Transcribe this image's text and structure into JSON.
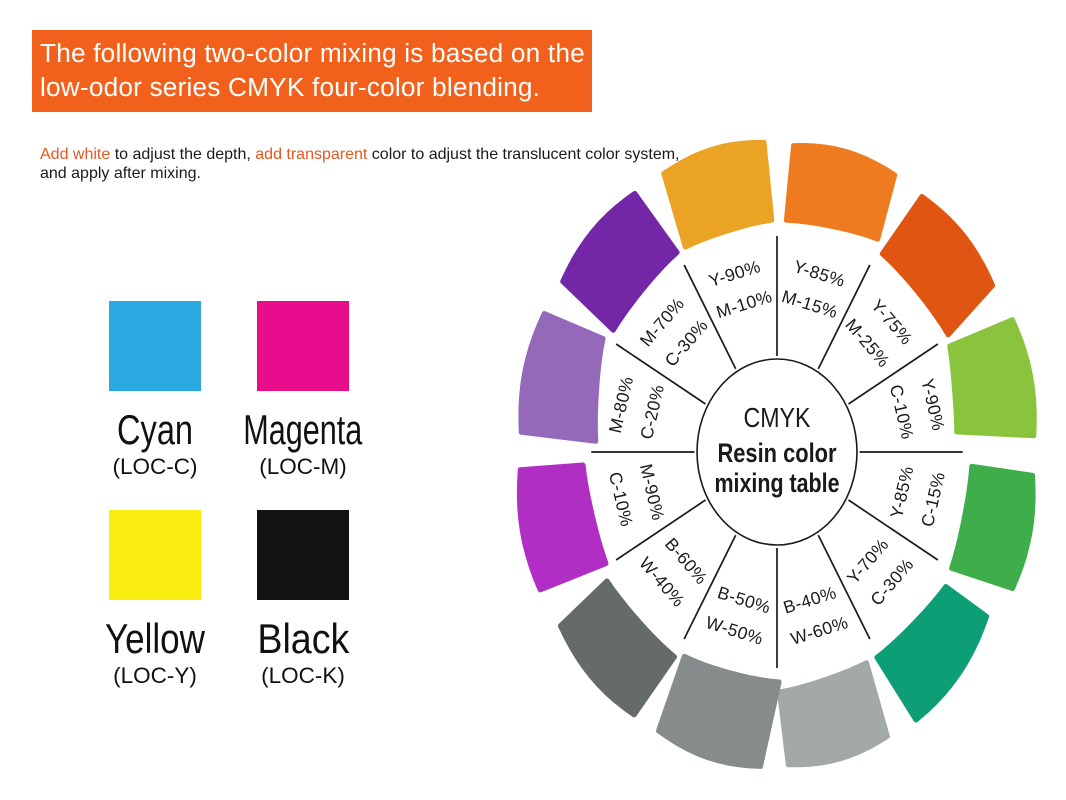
{
  "banner": {
    "line1": "The following two-color mixing is based on the",
    "line2": "low-odor series CMYK four-color blending.",
    "bg_color": "#F2611B",
    "text_color": "#FFFFFF"
  },
  "subtitle": {
    "lines": [
      [
        {
          "text": "Add white",
          "color": "#E8571E"
        },
        {
          "text": " to adjust the depth, ",
          "color": "#1A1A1A"
        },
        {
          "text": "add transparent",
          "color": "#E8571E"
        },
        {
          "text": " color to adjust the translucent color system,",
          "color": "#1A1A1A"
        }
      ],
      [
        {
          "text": "and apply after mixing.",
          "color": "#1A1A1A"
        }
      ]
    ]
  },
  "swatches": [
    {
      "name": "Cyan",
      "code": "(LOC-C)",
      "color": "#29A9E0"
    },
    {
      "name": "Magenta",
      "code": "(LOC-M)",
      "color": "#E70C8C"
    },
    {
      "name": "Yellow",
      "code": "(LOC-Y)",
      "color": "#F9EE0F"
    },
    {
      "name": "Black",
      "code": "(LOC-K)",
      "color": "#131313"
    }
  ],
  "wheel": {
    "center_title": "CMYK",
    "center_line1": "Resin color",
    "center_line2": "mixing table",
    "line_color": "#1A1A1A",
    "sectors": [
      {
        "line1": "Y-85%",
        "line2": "M-15%",
        "color": "#EE7B1F"
      },
      {
        "line1": "Y-75%",
        "line2": "M-25%",
        "color": "#E05512"
      },
      {
        "line1": "Y-90%",
        "line2": "C-10%",
        "color": "#8AC43D"
      },
      {
        "line1": "Y-85%",
        "line2": "C-15%",
        "color": "#3EAD4A"
      },
      {
        "line1": "Y-70%",
        "line2": "C-30%",
        "color": "#0D9E75"
      },
      {
        "line1": "B-40%",
        "line2": "W-60%",
        "color": "#A3A9A8"
      },
      {
        "line1": "B-50%",
        "line2": "W-50%",
        "color": "#868C8B"
      },
      {
        "line1": "B-60%",
        "line2": "W-40%",
        "color": "#656B6A"
      },
      {
        "line1": "M-90%",
        "line2": "C-10%",
        "color": "#B02EC4"
      },
      {
        "line1": "M-80%",
        "line2": "C-20%",
        "color": "#9569B9"
      },
      {
        "line1": "M-70%",
        "line2": "C-30%",
        "color": "#7327A6"
      },
      {
        "line1": "Y-90%",
        "line2": "M-10%",
        "color": "#EAA325"
      }
    ]
  }
}
